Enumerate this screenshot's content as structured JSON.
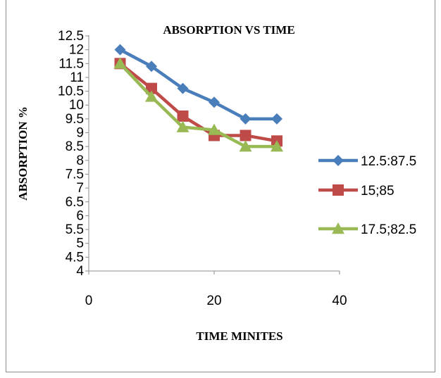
{
  "chart_data": {
    "type": "line",
    "title": "ABSORPTION VS TIME",
    "xlabel": "TIME MINITES",
    "ylabel": "ABSORPTION %",
    "xlim": [
      0,
      40
    ],
    "ylim": [
      4,
      12.5
    ],
    "xticks": [
      "0",
      "20",
      "40"
    ],
    "yticks": [
      "4",
      "4.5",
      "5",
      "5.5",
      "6",
      "6.5",
      "7",
      "7.5",
      "8",
      "8.5",
      "9",
      "9.5",
      "10",
      "10.5",
      "11",
      "11.5",
      "12",
      "12.5"
    ],
    "grid": false,
    "legend_position": "right",
    "x": [
      5,
      10,
      15,
      20,
      25,
      30
    ],
    "series": [
      {
        "name": "12.5:87.5",
        "values": [
          12.0,
          11.4,
          10.6,
          10.1,
          9.5,
          9.5
        ],
        "color": "#4a7ebb",
        "marker": "diamond"
      },
      {
        "name": "15;85",
        "values": [
          11.5,
          10.6,
          9.6,
          8.9,
          8.9,
          8.7
        ],
        "color": "#be4b48",
        "marker": "square"
      },
      {
        "name": "17.5;82.5",
        "values": [
          11.5,
          10.3,
          9.2,
          9.1,
          8.5,
          8.5
        ],
        "color": "#98b954",
        "marker": "triangle"
      }
    ]
  }
}
